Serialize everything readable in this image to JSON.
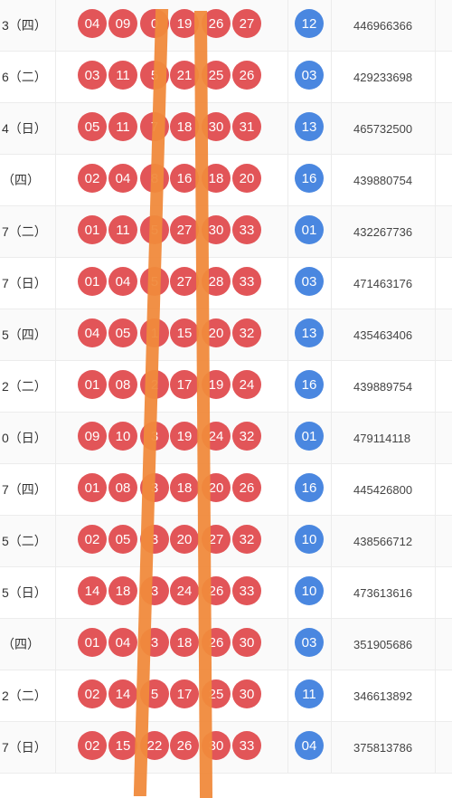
{
  "rows": [
    {
      "date": "3（四）",
      "red": [
        "04",
        "09",
        "0",
        "19",
        "26",
        "27"
      ],
      "blue": "12",
      "sales": "446966366"
    },
    {
      "date": "6（二）",
      "red": [
        "03",
        "11",
        "5",
        "21",
        "25",
        "26"
      ],
      "blue": "03",
      "sales": "429233698"
    },
    {
      "date": "4（日）",
      "red": [
        "05",
        "11",
        "7",
        "18",
        "30",
        "31"
      ],
      "blue": "13",
      "sales": "465732500"
    },
    {
      "date": "（四）",
      "red": [
        "02",
        "04",
        "8",
        "16",
        "18",
        "20"
      ],
      "blue": "16",
      "sales": "439880754"
    },
    {
      "date": "7（二）",
      "red": [
        "01",
        "11",
        "5",
        "27",
        "30",
        "33"
      ],
      "blue": "01",
      "sales": "432267736"
    },
    {
      "date": "7（日）",
      "red": [
        "01",
        "04",
        "5",
        "27",
        "28",
        "33"
      ],
      "blue": "03",
      "sales": "471463176"
    },
    {
      "date": "5（四）",
      "red": [
        "04",
        "05",
        "1",
        "15",
        "20",
        "32"
      ],
      "blue": "13",
      "sales": "435463406"
    },
    {
      "date": "2（二）",
      "red": [
        "01",
        "08",
        "2",
        "17",
        "19",
        "24"
      ],
      "blue": "16",
      "sales": "439889754"
    },
    {
      "date": "0（日）",
      "red": [
        "09",
        "10",
        "3",
        "19",
        "24",
        "32"
      ],
      "blue": "01",
      "sales": "479114118"
    },
    {
      "date": "7（四）",
      "red": [
        "01",
        "08",
        "3",
        "18",
        "20",
        "26"
      ],
      "blue": "16",
      "sales": "445426800"
    },
    {
      "date": "5（二）",
      "red": [
        "02",
        "05",
        "3",
        "20",
        "27",
        "32"
      ],
      "blue": "10",
      "sales": "438566712"
    },
    {
      "date": "5（日）",
      "red": [
        "14",
        "18",
        "3",
        "24",
        "26",
        "33"
      ],
      "blue": "10",
      "sales": "473613616"
    },
    {
      "date": "（四）",
      "red": [
        "01",
        "04",
        "3",
        "18",
        "26",
        "30"
      ],
      "blue": "03",
      "sales": "351905686"
    },
    {
      "date": "2（二）",
      "red": [
        "02",
        "14",
        "5",
        "17",
        "25",
        "30"
      ],
      "blue": "11",
      "sales": "346613892"
    },
    {
      "date": "7（日）",
      "red": [
        "02",
        "15",
        "22",
        "26",
        "30",
        "33"
      ],
      "blue": "04",
      "sales": "375813786"
    }
  ]
}
